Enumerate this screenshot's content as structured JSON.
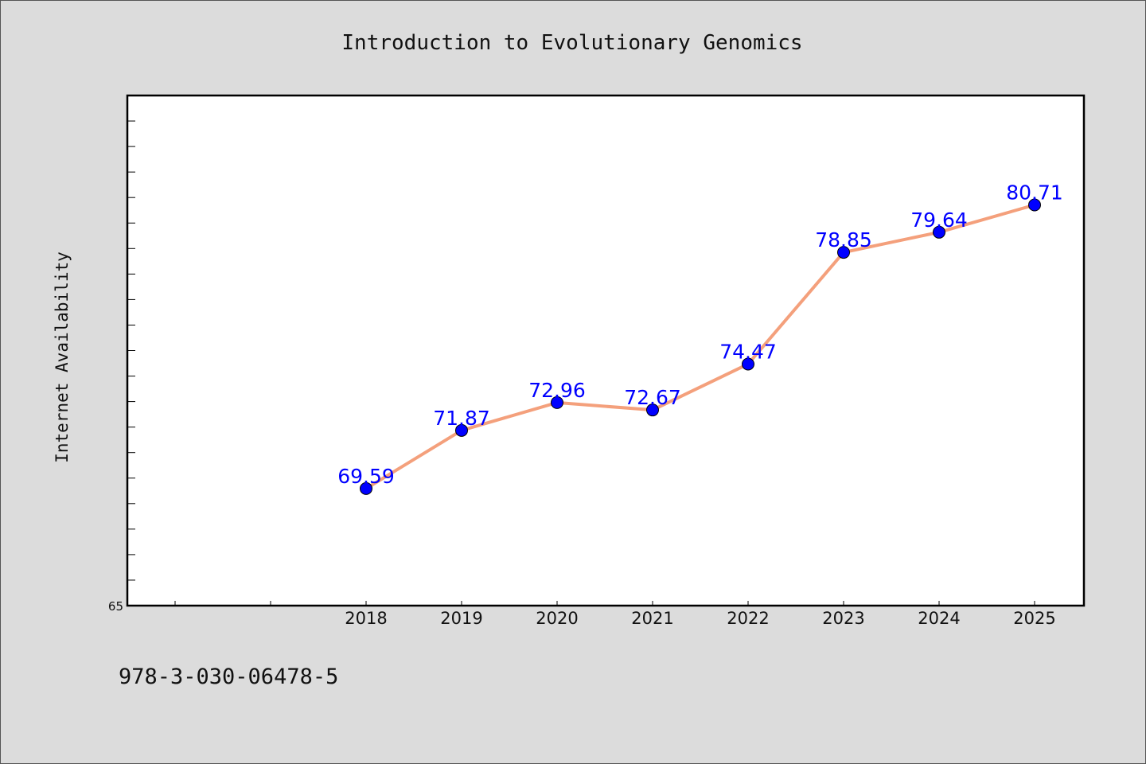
{
  "chart_data": {
    "type": "line",
    "title": "Introduction to Evolutionary Genomics",
    "xlabel": "",
    "ylabel": "Internet Availability",
    "categories": [
      "2018",
      "2019",
      "2020",
      "2021",
      "2022",
      "2023",
      "2024",
      "2025"
    ],
    "series": [
      {
        "values": [
          69.59,
          71.87,
          72.96,
          72.67,
          74.47,
          78.85,
          79.64,
          80.71
        ]
      }
    ],
    "data_labels": [
      "69.59",
      "71.87",
      "72.96",
      "72.67",
      "74.47",
      "78.85",
      "79.64",
      "80.71"
    ],
    "ylim": [
      65,
      85
    ],
    "y_tick_labels": [
      "65"
    ],
    "grid": false,
    "legend": "none",
    "colors": {
      "line": "#f4a07c",
      "marker": "#0000ff",
      "label": "#0000ff",
      "plot_bg": "#ffffff",
      "page_bg": "#dcdcdc"
    }
  },
  "footer": {
    "code": "978-3-030-06478-5"
  }
}
